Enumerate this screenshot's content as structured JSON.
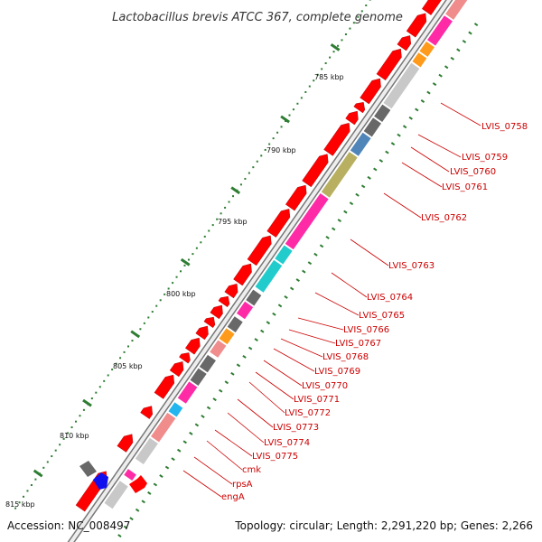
{
  "title": "Lactobacillus brevis ATCC 367, complete genome",
  "accession": "Accession: NC_008497",
  "topology": "Topology: circular; Length: 2,291,220 bp; Genes: 2,266",
  "scale_labels": [
    "785 kbp",
    "790 kbp",
    "795 kbp",
    "800 kbp",
    "805 kbp",
    "810 kbp",
    "815 kbp"
  ],
  "gene_labels": [
    "LVIS_0758",
    "LVIS_0759",
    "LVIS_0760",
    "LVIS_0761",
    "LVIS_0762",
    "LVIS_0763",
    "LVIS_0764",
    "LVIS_0765",
    "LVIS_0766",
    "LVIS_0767",
    "LVIS_0768",
    "LVIS_0769",
    "LVIS_0770",
    "LVIS_0771",
    "LVIS_0772",
    "LVIS_0773",
    "LVIS_0774",
    "LVIS_0775",
    "cmk",
    "rpsA",
    "engA"
  ],
  "colors": {
    "forward_cds": "#ff0000",
    "label_red": "#cc0000",
    "tick_green": "#2e7d32",
    "backbone_gray": "#777777",
    "pink": "#ff2ba6",
    "cyan": "#22cccc",
    "orange": "#ff9a1a",
    "olive": "#b8b060",
    "steel_blue": "#4f85b8",
    "light_blue": "#22b5ee",
    "salmon": "#f08c8c",
    "light_gray": "#c8c8c8",
    "dark_gray": "#686868",
    "blue": "#1010ee"
  }
}
